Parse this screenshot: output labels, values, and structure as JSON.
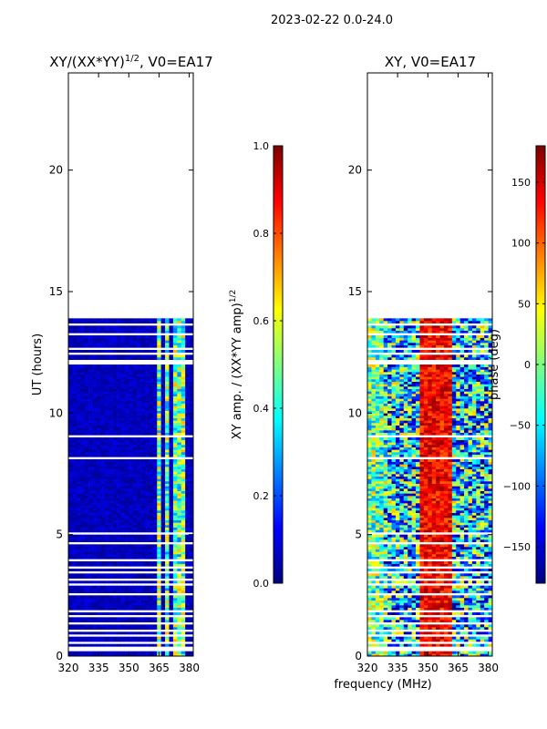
{
  "suptitle": "2023-02-22 0.0-24.0",
  "xlabel_shared": "frequency (MHz)",
  "colors": {
    "gap": "#ffffff",
    "jet_stops": [
      "#00007f",
      "#0000ff",
      "#007fff",
      "#00ffff",
      "#7fff7f",
      "#ffff00",
      "#ff7f00",
      "#ff0000",
      "#7f0000"
    ]
  },
  "chart_data": [
    {
      "type": "heatmap",
      "title_prefix": "XY/(XX*YY)",
      "title_exp": "1/2",
      "title_suffix": ", V0=EA17",
      "xlabel": "",
      "ylabel": "UT (hours)",
      "xlim": [
        320,
        382
      ],
      "ylim": [
        0,
        24
      ],
      "xticks": [
        320,
        335,
        350,
        365,
        380
      ],
      "yticks": [
        0,
        5,
        10,
        15,
        20
      ],
      "data_coverage_hours": [
        0,
        13.9
      ],
      "data_gaps_hours": [
        [
          0.2,
          0.35
        ],
        [
          0.5,
          0.6
        ],
        [
          0.75,
          0.85
        ],
        [
          0.95,
          1.05
        ],
        [
          1.3,
          1.38
        ],
        [
          1.6,
          1.68
        ],
        [
          1.8,
          1.88
        ],
        [
          2.45,
          2.6
        ],
        [
          2.85,
          2.93
        ],
        [
          3.05,
          3.12
        ],
        [
          3.35,
          3.42
        ],
        [
          3.6,
          3.68
        ],
        [
          3.85,
          3.92
        ],
        [
          4.6,
          4.68
        ],
        [
          4.95,
          5.03
        ],
        [
          5.2,
          5.28
        ],
        [
          5.6,
          5.68
        ],
        [
          7.4,
          7.48
        ],
        [
          7.7,
          7.78
        ],
        [
          8.05,
          8.13
        ],
        [
          8.95,
          9.03
        ],
        [
          9.7,
          9.78
        ],
        [
          10.0,
          10.08
        ],
        [
          10.3,
          10.38
        ],
        [
          11.9,
          12.1
        ],
        [
          12.3,
          12.4
        ],
        [
          12.55,
          12.65
        ],
        [
          13.1,
          13.2
        ],
        [
          13.5,
          13.6
        ]
      ],
      "bright_freq_bands_mhz": [
        [
          364,
          366
        ],
        [
          368,
          370
        ],
        [
          372,
          377
        ]
      ],
      "colorbar": {
        "label_main": "XY amp. / (XX*YY amp)",
        "label_exp": "1/2",
        "range": [
          0,
          1
        ],
        "ticks": [
          "0.0",
          "0.2",
          "0.4",
          "0.6",
          "0.8",
          "1.0"
        ]
      }
    },
    {
      "type": "heatmap",
      "title_prefix": "XY, V0=EA17",
      "title_exp": "",
      "title_suffix": "",
      "xlabel": "frequency (MHz)",
      "ylabel": "",
      "xlim": [
        320,
        382
      ],
      "ylim": [
        0,
        24
      ],
      "xticks": [
        320,
        335,
        350,
        365,
        380
      ],
      "yticks": [
        0,
        5,
        10,
        15,
        20
      ],
      "data_coverage_hours": [
        0,
        13.9
      ],
      "data_gaps_hours": [
        [
          0.2,
          0.35
        ],
        [
          0.5,
          0.6
        ],
        [
          0.75,
          0.85
        ],
        [
          0.95,
          1.05
        ],
        [
          1.3,
          1.38
        ],
        [
          1.6,
          1.68
        ],
        [
          1.8,
          1.88
        ],
        [
          2.45,
          2.6
        ],
        [
          2.85,
          2.93
        ],
        [
          3.05,
          3.12
        ],
        [
          3.35,
          3.42
        ],
        [
          3.6,
          3.68
        ],
        [
          3.85,
          3.92
        ],
        [
          4.6,
          4.68
        ],
        [
          4.95,
          5.03
        ],
        [
          5.2,
          5.28
        ],
        [
          5.6,
          5.68
        ],
        [
          7.4,
          7.48
        ],
        [
          7.7,
          7.78
        ],
        [
          8.05,
          8.13
        ],
        [
          8.95,
          9.03
        ],
        [
          9.7,
          9.78
        ],
        [
          10.0,
          10.08
        ],
        [
          10.3,
          10.38
        ],
        [
          11.9,
          12.1
        ],
        [
          12.3,
          12.4
        ],
        [
          12.55,
          12.65
        ],
        [
          13.1,
          13.2
        ],
        [
          13.5,
          13.6
        ]
      ],
      "colorbar": {
        "label_main": "phase (deg)",
        "label_exp": "",
        "range": [
          -180,
          180
        ],
        "ticks": [
          "−150",
          "−100",
          "−50",
          "0",
          "50",
          "100",
          "150"
        ],
        "tick_values": [
          -150,
          -100,
          -50,
          0,
          50,
          100,
          150
        ]
      }
    }
  ]
}
